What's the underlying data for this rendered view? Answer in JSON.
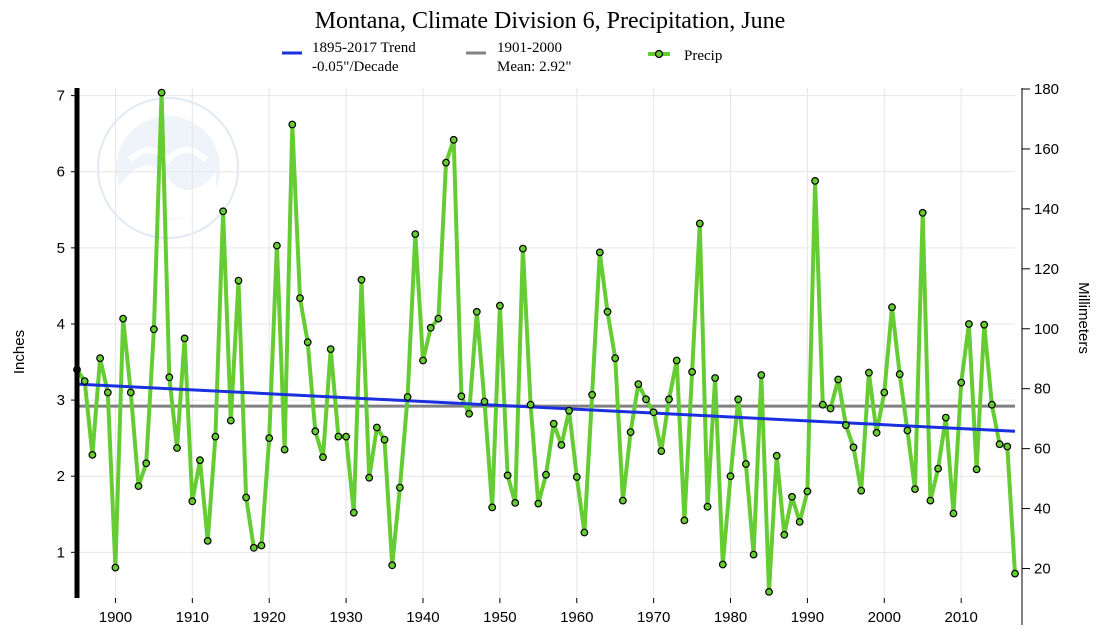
{
  "chart_data": {
    "type": "line",
    "title": "Montana, Climate Division 6, Precipitation, June",
    "ylabel": "Inches",
    "ylabel_right": "Millimeters",
    "xlim": [
      1895,
      2017
    ],
    "ylim": [
      0.4,
      7.1
    ],
    "ylim_right_mm": [
      10.16,
      180.34
    ],
    "x_ticks": [
      1900,
      1910,
      1920,
      1930,
      1940,
      1950,
      1960,
      1970,
      1980,
      1990,
      2000,
      2010
    ],
    "y_ticks": [
      1,
      2,
      3,
      4,
      5,
      6,
      7
    ],
    "y_ticks_right": [
      20,
      40,
      60,
      80,
      100,
      120,
      140,
      160,
      180
    ],
    "grid": true,
    "legend_position": "top",
    "legend": {
      "trend_label_1": "1895-2017 Trend",
      "trend_label_2": "-0.05\"/Decade",
      "mean_label_1": "1901-2000",
      "mean_label_2": "Mean: 2.92\"",
      "precip_label": "Precip"
    },
    "trend": {
      "x": [
        1895,
        2017
      ],
      "y": [
        3.21,
        2.59
      ],
      "color": "#1a2fe0"
    },
    "mean": {
      "x": [
        1895,
        2017
      ],
      "y": [
        2.92,
        2.92
      ],
      "color": "#808080"
    },
    "series": [
      {
        "name": "Precip",
        "color": "#66cc33",
        "x": [
          1895,
          1896,
          1897,
          1898,
          1899,
          1900,
          1901,
          1902,
          1903,
          1904,
          1905,
          1906,
          1907,
          1908,
          1909,
          1910,
          1911,
          1912,
          1913,
          1914,
          1915,
          1916,
          1917,
          1918,
          1919,
          1920,
          1921,
          1922,
          1923,
          1924,
          1925,
          1926,
          1927,
          1928,
          1929,
          1930,
          1931,
          1932,
          1933,
          1934,
          1935,
          1936,
          1937,
          1938,
          1939,
          1940,
          1941,
          1942,
          1943,
          1944,
          1945,
          1946,
          1947,
          1948,
          1949,
          1950,
          1951,
          1952,
          1953,
          1954,
          1955,
          1956,
          1957,
          1958,
          1959,
          1960,
          1961,
          1962,
          1963,
          1964,
          1965,
          1966,
          1967,
          1968,
          1969,
          1970,
          1971,
          1972,
          1973,
          1974,
          1975,
          1976,
          1977,
          1978,
          1979,
          1980,
          1981,
          1982,
          1983,
          1984,
          1985,
          1986,
          1987,
          1988,
          1989,
          1990,
          1991,
          1992,
          1993,
          1994,
          1995,
          1996,
          1997,
          1998,
          1999,
          2000,
          2001,
          2002,
          2003,
          2004,
          2005,
          2006,
          2007,
          2008,
          2009,
          2010,
          2011,
          2012,
          2013,
          2014,
          2015,
          2016,
          2017
        ],
        "values": [
          3.4,
          3.25,
          2.28,
          3.55,
          3.1,
          0.8,
          4.07,
          3.1,
          1.87,
          2.17,
          3.93,
          7.04,
          3.3,
          2.37,
          3.81,
          1.67,
          2.21,
          1.15,
          2.52,
          5.48,
          2.73,
          4.57,
          1.72,
          1.06,
          1.09,
          2.5,
          5.03,
          2.35,
          6.62,
          4.34,
          3.76,
          2.59,
          2.25,
          3.67,
          2.52,
          2.52,
          1.52,
          4.58,
          1.98,
          2.64,
          2.48,
          0.83,
          1.85,
          3.04,
          5.18,
          3.52,
          3.95,
          4.07,
          6.12,
          6.42,
          3.05,
          2.82,
          4.16,
          2.98,
          1.59,
          4.24,
          2.01,
          1.65,
          4.99,
          2.94,
          1.64,
          2.02,
          2.69,
          2.41,
          2.86,
          1.99,
          1.26,
          3.07,
          4.94,
          4.16,
          3.55,
          1.68,
          2.58,
          3.21,
          3.01,
          2.84,
          2.33,
          3.01,
          3.52,
          1.42,
          3.37,
          5.32,
          1.6,
          3.29,
          0.84,
          2.0,
          3.01,
          2.16,
          0.97,
          3.33,
          0.48,
          2.27,
          1.23,
          1.73,
          1.4,
          1.8,
          5.88,
          2.94,
          2.89,
          3.27,
          2.67,
          2.38,
          1.81,
          3.36,
          2.57,
          3.1,
          4.22,
          3.34,
          2.6,
          1.83,
          5.46,
          1.68,
          2.1,
          2.77,
          1.51,
          3.23,
          4.0,
          2.09,
          3.99,
          2.94,
          2.42,
          2.39,
          0.72
        ]
      }
    ]
  }
}
